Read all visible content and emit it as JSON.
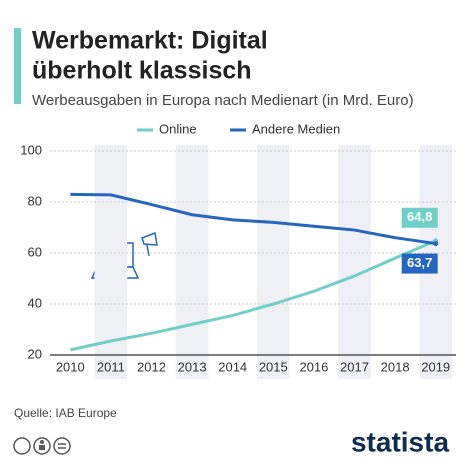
{
  "chart_data": {
    "type": "line",
    "title": [
      "Werbemarkt: Digital",
      "überholt klassisch"
    ],
    "subtitle": "Werbeausgaben in Europa nach Medienart (in Mrd. Euro)",
    "categories": [
      "2010",
      "2011",
      "2012",
      "2013",
      "2014",
      "2015",
      "2016",
      "2017",
      "2018",
      "2019"
    ],
    "series": [
      {
        "name": "Online",
        "color": "#6fcfc9",
        "values": [
          22,
          25.5,
          28.5,
          32,
          35.5,
          40,
          45,
          51,
          58,
          64.8
        ],
        "value_labels": [
          null,
          null,
          null,
          null,
          null,
          null,
          null,
          null,
          null,
          "64,8"
        ]
      },
      {
        "name": "Andere Medien",
        "color": "#2466c0",
        "values": [
          83,
          82.8,
          79,
          75,
          73,
          72,
          70.5,
          69,
          66,
          63.7
        ],
        "value_labels": [
          null,
          null,
          null,
          null,
          null,
          null,
          null,
          null,
          null,
          "63,7"
        ]
      }
    ],
    "ylim": [
      20,
      100
    ],
    "yticks": [
      20,
      40,
      60,
      80,
      100
    ],
    "grid": true,
    "source": "Quelle: IAB Europe",
    "brand": "statista"
  }
}
